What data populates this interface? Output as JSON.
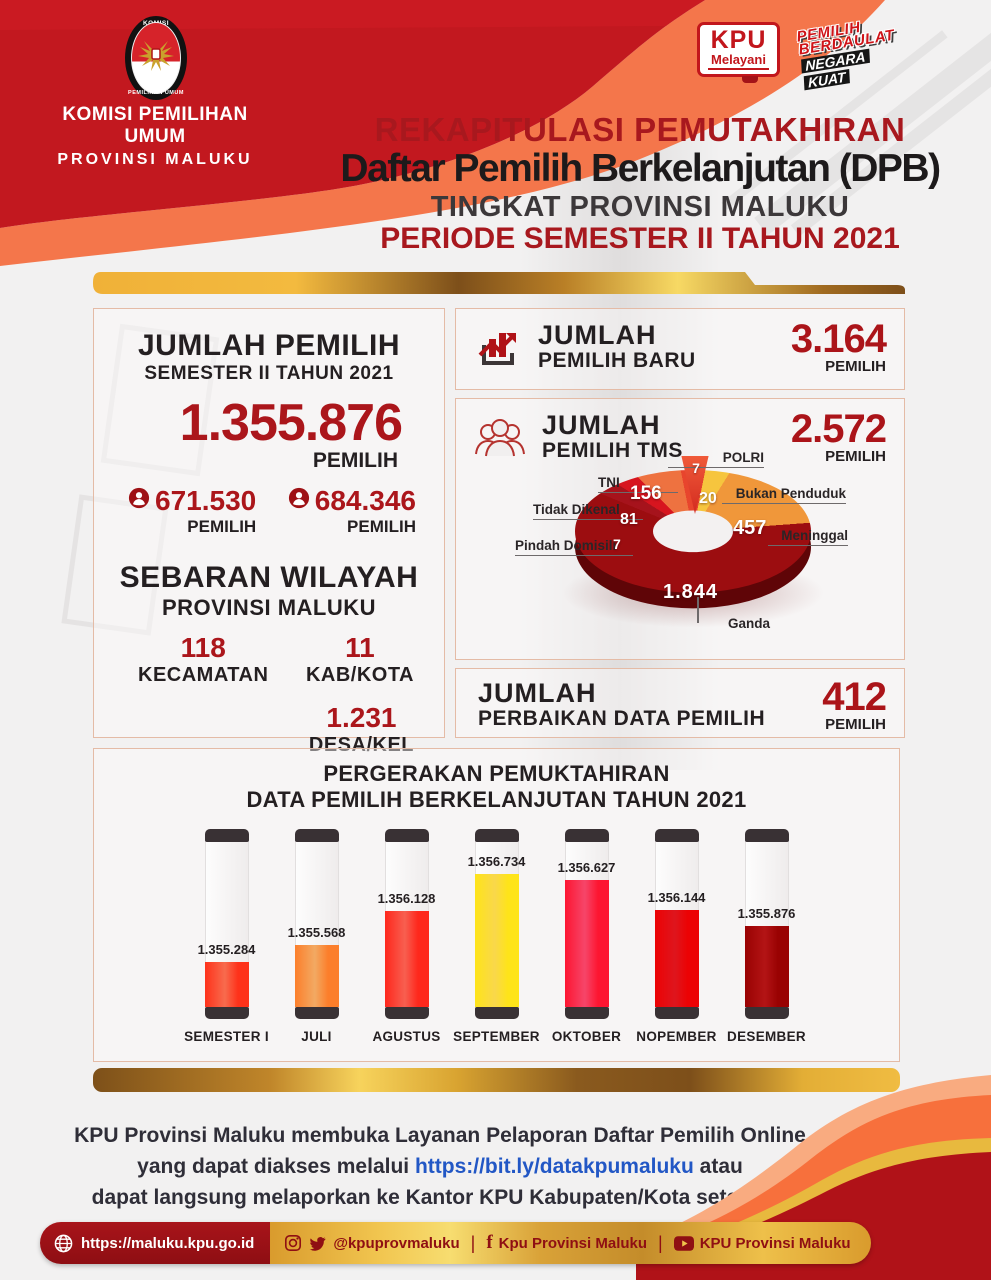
{
  "header": {
    "logo_ring_top": "KOMISI",
    "logo_ring_bottom": "PEMILIHAN UMUM",
    "org_line1": "KOMISI PEMILIHAN UMUM",
    "org_line2": "PROVINSI MALUKU",
    "kpu_melayani": {
      "line1": "KPU",
      "line2": "Melayani"
    },
    "slogan": {
      "word1": "PEMILIH",
      "word2": "BERDAULAT",
      "word3": "NEGARA",
      "word4": "KUAT"
    },
    "title1": "REKAPITULASI PEMUTAKHIRAN",
    "title2": "Daftar Pemilih Berkelanjutan (DPB)",
    "title3": "TINGKAT PROVINSI MALUKU",
    "title4": "PERIODE SEMESTER II TAHUN 2021"
  },
  "left_panel": {
    "title": "JUMLAH PEMILIH",
    "subtitle": "SEMESTER II TAHUN 2021",
    "total": "1.355.876",
    "total_label": "PEMILIH",
    "male": {
      "value": "671.530",
      "label": "PEMILIH"
    },
    "female": {
      "value": "684.346",
      "label": "PEMILIH"
    },
    "sebaran_title": "SEBARAN WILAYAH",
    "sebaran_subtitle": "PROVINSI MALUKU",
    "stats": [
      {
        "value": "118",
        "label": "KECAMATAN"
      },
      {
        "value": "11",
        "label": "KAB/KOTA"
      },
      {
        "value": "1.231",
        "label": "DESA/KEL"
      }
    ]
  },
  "right_panel": {
    "pemilih_baru": {
      "title1": "JUMLAH",
      "title2": "PEMILIH BARU",
      "value": "3.164",
      "label": "PEMILIH"
    },
    "pemilih_tms": {
      "title1": "JUMLAH",
      "title2": "PEMILIH TMS",
      "value": "2.572",
      "label": "PEMILIH"
    },
    "perbaikan": {
      "title1": "JUMLAH",
      "title2": "PERBAIKAN DATA PEMILIH",
      "value": "412",
      "label": "PEMILIH"
    }
  },
  "chart_data": [
    {
      "type": "pie",
      "title": "JUMLAH PEMILIH TMS",
      "total": 2572,
      "legend_position": "around",
      "slices": [
        {
          "label": "POLRI",
          "value": 7,
          "display": "7",
          "color": "#e8452d"
        },
        {
          "label": "Bukan Penduduk",
          "value": 20,
          "display": "20",
          "color": "#f6c53e"
        },
        {
          "label": "Meninggal",
          "value": 457,
          "display": "457",
          "color": "#f0973a"
        },
        {
          "label": "Ganda",
          "value": 1844,
          "display": "1.844",
          "color": "#9c0d10"
        },
        {
          "label": "Pindah Domisili",
          "value": 7,
          "display": "7",
          "color": "#a6131c"
        },
        {
          "label": "Tidak Dikenal",
          "value": 81,
          "display": "81",
          "color": "#d7151f"
        },
        {
          "label": "TNI",
          "value": 156,
          "display": "156",
          "color": "#ee7240"
        }
      ]
    },
    {
      "type": "bar",
      "title1": "PERGERAKAN PEMUKTAHIRAN",
      "title2": "DATA PEMILIH BERKELANJUTAN TAHUN 2021",
      "categories": [
        "SEMESTER I",
        "JULI",
        "AGUSTUS",
        "SEPTEMBER",
        "OKTOBER",
        "NOPEMBER",
        "DESEMBER"
      ],
      "values": [
        1355284,
        1355568,
        1356128,
        1356734,
        1356627,
        1356144,
        1355876
      ],
      "labels": [
        "1.355.284",
        "1.355.568",
        "1.356.128",
        "1.356.734",
        "1.356.627",
        "1.356.144",
        "1.355.876"
      ],
      "colors": [
        "#f4503a",
        "#ec7f4a",
        "#f4473c",
        "#f6c438",
        "#f1344f",
        "#ce1016",
        "#8d0f10"
      ],
      "ylim": [
        1355284,
        1356734
      ],
      "grid": false
    }
  ],
  "footer": {
    "line1": "KPU Provinsi Maluku membuka Layanan Pelaporan Daftar Pemilih Online",
    "line2_pre": "yang dapat diakses melalui ",
    "link": "https://bit.ly/datakpumaluku",
    "line2_post": " atau",
    "line3": "dapat langsung melaporkan ke Kantor KPU Kabupaten/Kota setempat",
    "social": {
      "website": "https://maluku.kpu.go.id",
      "handle": "@kpuprovmaluku",
      "facebook": "Kpu Provinsi Maluku",
      "youtube": "KPU Provinsi Maluku"
    }
  }
}
